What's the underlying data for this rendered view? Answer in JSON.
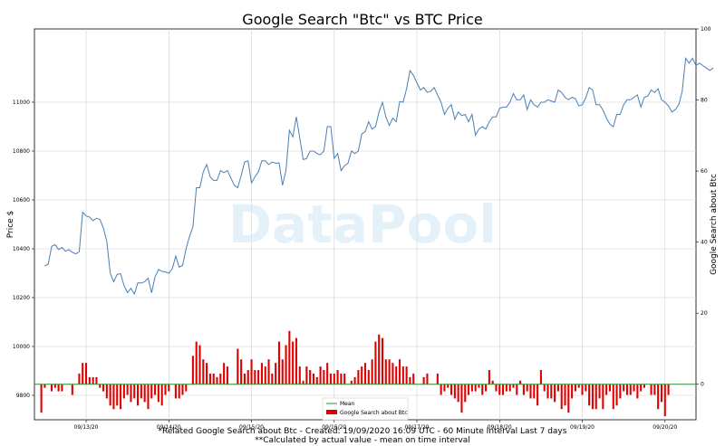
{
  "chart_data": {
    "type": "line",
    "title": "Google Search \"Btc\" vs BTC Price",
    "watermark": "DataPool",
    "ylabel_left": "Price $",
    "ylabel_right": "Google Search about Btc",
    "ylim_left": [
      9700,
      11300
    ],
    "ylim_right": [
      -10,
      100
    ],
    "left_ticks": [
      9800,
      10000,
      10200,
      10400,
      10600,
      10800,
      11000
    ],
    "right_ticks": [
      0,
      20,
      40,
      60,
      80,
      100
    ],
    "x_ticks": [
      "09/13/20",
      "09/14/20",
      "09/15/20",
      "09/16/20",
      "09/17/20",
      "09/18/20",
      "09/19/20",
      "09/20/20"
    ],
    "x_tick_hours": [
      15,
      39,
      63,
      87,
      111,
      135,
      159,
      183
    ],
    "grid": true,
    "legend_position": "bottom-center",
    "legend": [
      "Mean",
      "Google Search about Btc"
    ],
    "price_color": "#4a7fb5",
    "bar_color": "#e00000",
    "mean_color": "#2e8b2e",
    "price_series": {
      "name": "BTC Price",
      "values": [
        10330,
        10337,
        10410,
        10417,
        10397,
        10405,
        10390,
        10396,
        10386,
        10379,
        10388,
        10550,
        10535,
        10530,
        10515,
        10525,
        10520,
        10485,
        10430,
        10300,
        10265,
        10295,
        10298,
        10250,
        10220,
        10238,
        10215,
        10260,
        10260,
        10265,
        10280,
        10220,
        10285,
        10315,
        10308,
        10305,
        10300,
        10318,
        10370,
        10325,
        10332,
        10400,
        10450,
        10490,
        10650,
        10650,
        10715,
        10745,
        10695,
        10680,
        10680,
        10720,
        10712,
        10720,
        10690,
        10660,
        10650,
        10700,
        10755,
        10760,
        10670,
        10695,
        10715,
        10760,
        10760,
        10745,
        10755,
        10750,
        10752,
        10660,
        10720,
        10885,
        10858,
        10940,
        10855,
        10765,
        10770,
        10800,
        10800,
        10790,
        10785,
        10800,
        10900,
        10900,
        10770,
        10790,
        10720,
        10740,
        10750,
        10800,
        10790,
        10800,
        10870,
        10880,
        10920,
        10890,
        10900,
        10960,
        11000,
        10940,
        10905,
        10935,
        10920,
        11003,
        11000,
        11055,
        11130,
        11110,
        11080,
        11050,
        11060,
        11040,
        11045,
        11060,
        11030,
        11000,
        10950,
        10975,
        10990,
        10930,
        10960,
        10945,
        10950,
        10920,
        10950,
        10865,
        10890,
        10900,
        10890,
        10920,
        10940,
        10940,
        10975,
        10980,
        10980,
        11000,
        11035,
        11010,
        11010,
        11030,
        10970,
        11010,
        10990,
        10980,
        11000,
        11000,
        11010,
        11005,
        11000,
        11050,
        11040,
        11020,
        11010,
        11020,
        11015,
        10985,
        10990,
        11018,
        11060,
        11050,
        10990,
        10990,
        10968,
        10935,
        10910,
        10900,
        10950,
        10950,
        10990,
        11010,
        11010,
        11020,
        11030,
        10980,
        11020,
        11025,
        11050,
        11040,
        11055,
        11010,
        11000,
        10985,
        10960,
        10970,
        10990,
        11045,
        11180,
        11160,
        11180,
        11150,
        11160,
        11150,
        11140,
        11130,
        11140
      ],
      "values_note": "hourly close, 183 points starting 09/12/20 21:00 UTC"
    },
    "search_series": {
      "name": "Google Search about Btc",
      "values": [
        -8,
        -1,
        0,
        -2,
        -1,
        -2,
        -2,
        0,
        0,
        -3,
        0,
        3,
        6,
        6,
        2,
        2,
        2,
        -1,
        -2,
        -4,
        -6,
        -7,
        -6,
        -7,
        -4,
        -3,
        -5,
        -4,
        -6,
        -4,
        -5,
        -7,
        -4,
        -3,
        -5,
        -6,
        -3,
        -2,
        0,
        -4,
        -4,
        -3,
        -2,
        0,
        8,
        12,
        11,
        7,
        6,
        3,
        3,
        2,
        3,
        6,
        5,
        0,
        0,
        10,
        7,
        3,
        4,
        7,
        4,
        4,
        6,
        5,
        7,
        3,
        6,
        12,
        7,
        11,
        15,
        12,
        13,
        5,
        1,
        5,
        4,
        3,
        2,
        5,
        4,
        6,
        3,
        3,
        4,
        3,
        3,
        0,
        1,
        2,
        4,
        5,
        6,
        4,
        7,
        12,
        14,
        13,
        7,
        7,
        6,
        5,
        7,
        5,
        5,
        2,
        3,
        0,
        0,
        2,
        3,
        0,
        0,
        3,
        -3,
        -2,
        -1,
        -3,
        -4,
        -5,
        -8,
        -5,
        -3,
        -2,
        -2,
        -1,
        -3,
        -2,
        4,
        1,
        -2,
        -3,
        -3,
        -2,
        -2,
        -1,
        -3,
        1,
        -3,
        -2,
        -4,
        -4,
        -6,
        4,
        -2,
        -4,
        -4,
        -5,
        -2,
        -7,
        -6,
        -8,
        -4,
        -2,
        -1,
        -3,
        -2,
        -6,
        -7,
        -7,
        -4,
        -7,
        -3,
        -2,
        -7,
        -6,
        -4,
        -2,
        -3,
        -3,
        -2,
        -4,
        -2,
        -1,
        0,
        -3,
        -3,
        -7,
        -5,
        -9,
        -3
      ]
    },
    "footer_line1": "*Related Google Search about Btc  -  Created: 19/09/2020 16:09 UTC - 60 Minute Interval Last 7 days",
    "footer_line2": "**Calculated by actual value - mean on time interval"
  }
}
